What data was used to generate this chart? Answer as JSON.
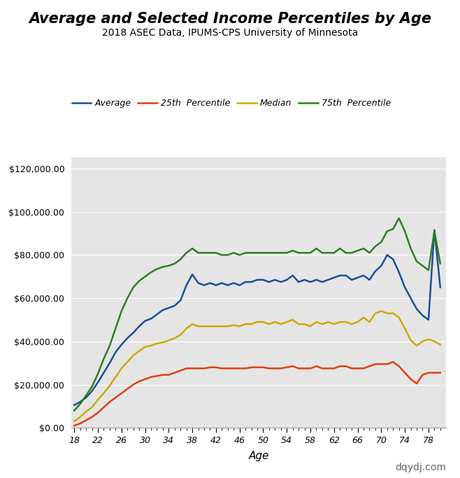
{
  "title": "Average and Selected Income Percentiles by Age",
  "subtitle": "2018 ASEC Data, IPUMS-CPS University of Minnesota",
  "xlabel": "Age",
  "watermark": "dqydj.com",
  "bg_color": "#e5e5e5",
  "ylim": [
    0,
    125000
  ],
  "yticks": [
    0,
    20000,
    40000,
    60000,
    80000,
    100000,
    120000
  ],
  "xlim": [
    17.5,
    81
  ],
  "xticks": [
    18,
    22,
    26,
    30,
    34,
    38,
    42,
    46,
    50,
    54,
    58,
    62,
    66,
    70,
    74,
    78
  ],
  "ages": [
    18,
    19,
    20,
    21,
    22,
    23,
    24,
    25,
    26,
    27,
    28,
    29,
    30,
    31,
    32,
    33,
    34,
    35,
    36,
    37,
    38,
    39,
    40,
    41,
    42,
    43,
    44,
    45,
    46,
    47,
    48,
    49,
    50,
    51,
    52,
    53,
    54,
    55,
    56,
    57,
    58,
    59,
    60,
    61,
    62,
    63,
    64,
    65,
    66,
    67,
    68,
    69,
    70,
    71,
    72,
    73,
    74,
    75,
    76,
    77,
    78,
    79,
    80
  ],
  "average": [
    10500,
    12000,
    14000,
    17000,
    21000,
    25500,
    30000,
    35000,
    38500,
    41500,
    44000,
    47000,
    49500,
    50500,
    52500,
    54500,
    55500,
    56500,
    59000,
    66000,
    71000,
    67000,
    66000,
    67000,
    66000,
    67000,
    66000,
    67000,
    66000,
    67500,
    67500,
    68500,
    68500,
    67500,
    68500,
    67500,
    68500,
    70500,
    67500,
    68500,
    67500,
    68500,
    67500,
    68500,
    69500,
    70500,
    70500,
    68500,
    69500,
    70500,
    68500,
    72500,
    75000,
    80000,
    78000,
    72000,
    65000,
    60000,
    55000,
    52000,
    50000,
    91500,
    65000
  ],
  "p25": [
    1000,
    2000,
    3500,
    5000,
    7000,
    9500,
    12000,
    14000,
    16000,
    18000,
    20000,
    21500,
    22500,
    23500,
    24000,
    24500,
    24500,
    25500,
    26500,
    27500,
    27500,
    27500,
    27500,
    28000,
    28000,
    27500,
    27500,
    27500,
    27500,
    27500,
    28000,
    28000,
    28000,
    27500,
    27500,
    27500,
    28000,
    28500,
    27500,
    27500,
    27500,
    28500,
    27500,
    27500,
    27500,
    28500,
    28500,
    27500,
    27500,
    27500,
    28500,
    29500,
    29500,
    29500,
    30500,
    28500,
    25500,
    22500,
    20500,
    24500,
    25500,
    25500,
    25500
  ],
  "median": [
    3000,
    5000,
    7500,
    9500,
    13000,
    16000,
    19500,
    23500,
    27500,
    30500,
    33500,
    35500,
    37500,
    38000,
    39000,
    39500,
    40500,
    41500,
    43000,
    46000,
    48000,
    47000,
    47000,
    47000,
    47000,
    47000,
    47000,
    47500,
    47000,
    48000,
    48000,
    49000,
    49000,
    48000,
    49000,
    48000,
    49000,
    50000,
    48000,
    48000,
    47000,
    49000,
    48000,
    49000,
    48000,
    49000,
    49000,
    48000,
    49000,
    51000,
    49000,
    53000,
    54000,
    53000,
    53000,
    51000,
    46000,
    40500,
    38000,
    40000,
    41000,
    40000,
    38500
  ],
  "p75": [
    8000,
    11000,
    15000,
    19000,
    25000,
    32000,
    38000,
    46000,
    54000,
    60000,
    65000,
    68000,
    70000,
    72000,
    73500,
    74500,
    75000,
    76000,
    78000,
    81000,
    83000,
    81000,
    81000,
    81000,
    81000,
    80000,
    80000,
    81000,
    80000,
    81000,
    81000,
    81000,
    81000,
    81000,
    81000,
    81000,
    81000,
    82000,
    81000,
    81000,
    81000,
    83000,
    81000,
    81000,
    81000,
    83000,
    81000,
    81000,
    82000,
    83000,
    81000,
    84000,
    86000,
    91000,
    92000,
    97000,
    91000,
    83000,
    77000,
    75000,
    73000,
    91000,
    76000
  ],
  "series_colors": [
    "#1a4f9c",
    "#e04010",
    "#ccaa00",
    "#2d8020"
  ],
  "series_labels": [
    "Average",
    "25th  Percentile",
    "Median",
    "75th  Percentile"
  ],
  "line_width": 1.8
}
